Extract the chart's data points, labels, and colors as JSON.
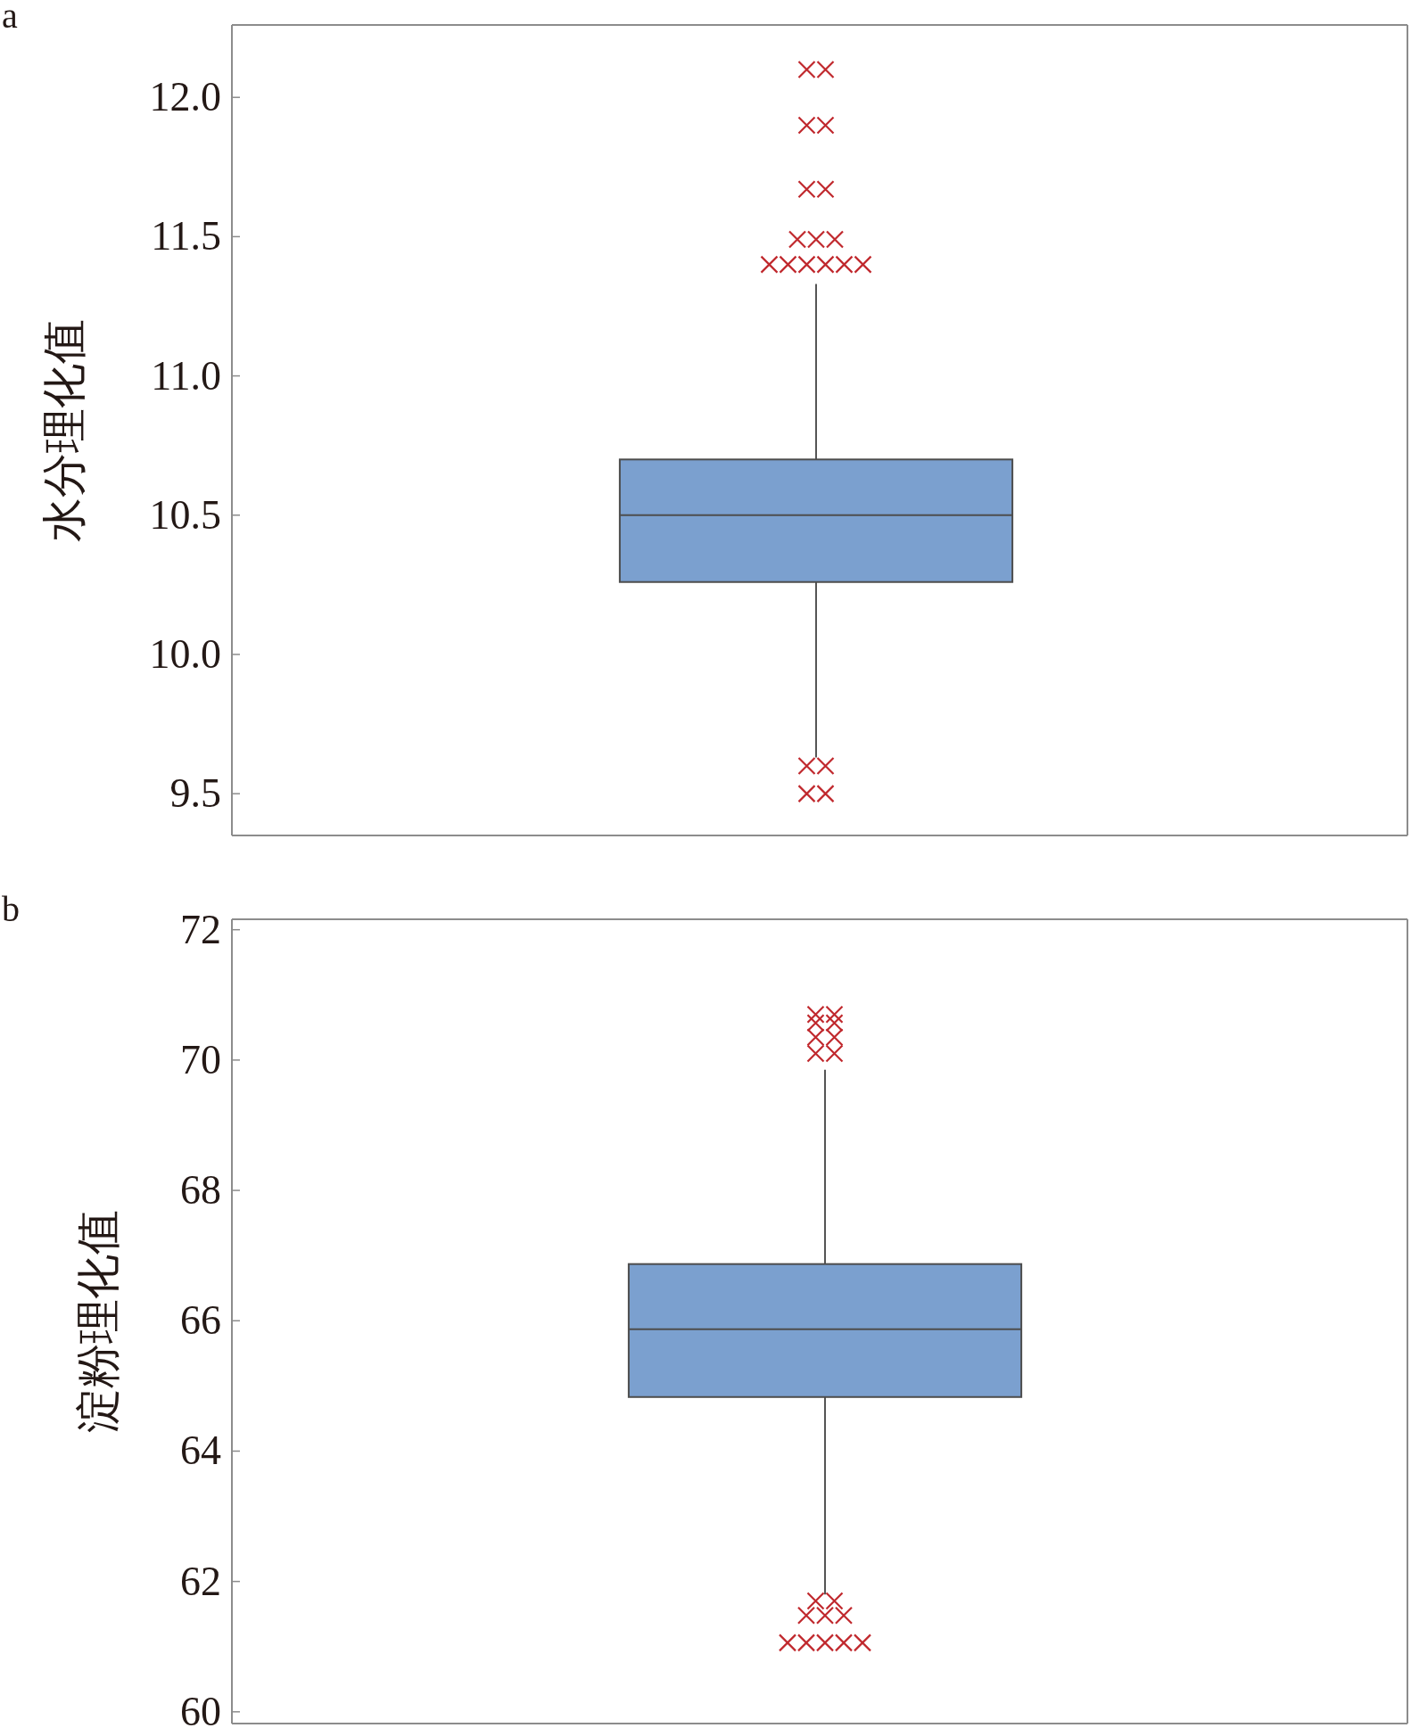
{
  "chart_data": [
    {
      "type": "box",
      "title": "a",
      "ylabel": "水分理化值",
      "categories": [
        null
      ],
      "marker": "cross",
      "colors": [
        "#7ba0cf"
      ],
      "boxes": [
        {
          "low": 9.63,
          "q1": 10.26,
          "median": 10.5,
          "q3": 10.7,
          "high": 11.33,
          "outliers": [
            12.1,
            12.1,
            11.9,
            11.9,
            11.67,
            11.67,
            11.49,
            11.49,
            11.49,
            11.4,
            11.4,
            11.4,
            11.4,
            11.4,
            11.4,
            9.6,
            9.6,
            9.5,
            9.5
          ]
        }
      ],
      "ylim": [
        9.35,
        12.26
      ],
      "yticks": [
        {
          "value": 9.5,
          "label": "9.5"
        },
        {
          "value": 10,
          "label": "10.0"
        },
        {
          "value": 10.5,
          "label": "10.5"
        },
        {
          "value": 11,
          "label": "11.0"
        },
        {
          "value": 11.5,
          "label": "11.5"
        },
        {
          "value": 12,
          "label": "12.0"
        }
      ]
    },
    {
      "type": "box",
      "title": "b",
      "ylabel": "淀粉理化值",
      "categories": [
        null
      ],
      "marker": "cross",
      "colors": [
        "#7ba0cf"
      ],
      "boxes": [
        {
          "low": 61.8,
          "q1": 64.83,
          "median": 65.87,
          "q3": 66.87,
          "high": 69.85,
          "outliers": [
            70.7,
            70.7,
            70.57,
            70.57,
            70.35,
            70.35,
            70.1,
            70.1,
            61.7,
            61.7,
            61.48,
            61.48,
            61.48,
            61.06,
            61.06,
            61.06,
            61.06,
            61.06
          ]
        }
      ],
      "ylim": [
        59.82,
        72.16
      ],
      "yticks": [
        60,
        62,
        64,
        66,
        68,
        70,
        72
      ]
    }
  ]
}
